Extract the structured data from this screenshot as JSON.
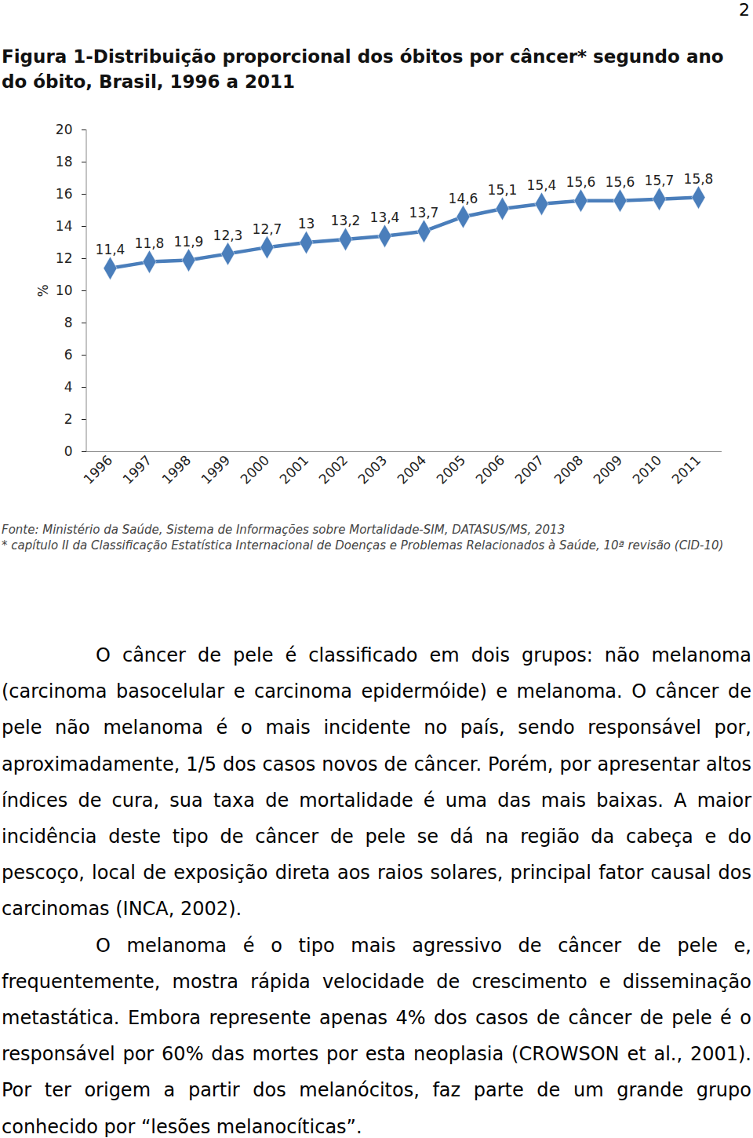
{
  "page": "2",
  "chart_data": {
    "type": "line",
    "title": "Figura 1-Distribuição proporcional dos óbitos por câncer* segundo ano do óbito, Brasil, 1996 a 2011",
    "y_label": "%",
    "categories": [
      "1996",
      "1997",
      "1998",
      "1999",
      "2000",
      "2001",
      "2002",
      "2003",
      "2004",
      "2005",
      "2006",
      "2007",
      "2008",
      "2009",
      "2010",
      "2011"
    ],
    "values": [
      11.4,
      11.8,
      11.9,
      12.3,
      12.7,
      13,
      13.2,
      13.4,
      13.7,
      14.6,
      15.1,
      15.4,
      15.6,
      15.6,
      15.7,
      15.8
    ],
    "value_labels": [
      "11,4",
      "11,8",
      "11,9",
      "12,3",
      "12,7",
      "13",
      "13,2",
      "13,4",
      "13,7",
      "14,6",
      "15,1",
      "15,4",
      "15,6",
      "15,6",
      "15,7",
      "15,8"
    ],
    "color": "#4a7ebb",
    "marker": "diamond",
    "data_labels": true,
    "grid": false,
    "ylim": [
      0,
      20
    ],
    "yticks": [
      0,
      2,
      4,
      6,
      8,
      10,
      12,
      14,
      16,
      18,
      20
    ]
  },
  "notes": [
    "Fonte: Ministério da Saúde, Sistema de Informações sobre Mortalidade-SIM, DATASUS/MS, 2013",
    "* capítulo II da Classificação Estatística Internacional de Doenças e Problemas Relacionados à Saúde, 10ª revisão (CID-10)"
  ],
  "paragraphs": [
    "O câncer de pele é classificado em dois grupos: não melanoma (carcinoma basocelular e carcinoma epidermóide) e melanoma. O câncer de pele não melanoma é o mais incidente no país, sendo responsável por, aproximadamente, 1/5 dos casos novos de câncer. Porém, por apresentar altos índices de cura, sua taxa de mortalidade é uma das mais baixas. A maior incidência deste tipo de câncer de pele se dá na região da cabeça e do pescoço, local de exposição direta aos raios solares, principal fator causal dos carcinomas (INCA, 2002).",
    "O melanoma é o tipo mais agressivo de câncer de pele e, frequentemente, mostra rápida velocidade de crescimento e disseminação metastática. Embora represente apenas 4% dos casos de câncer de pele é o responsável por 60% das mortes por esta neoplasia (CROWSON et al., 2001). Por ter origem a partir dos melanócitos, faz parte de um grande grupo conhecido por “lesões melanocíticas”."
  ]
}
